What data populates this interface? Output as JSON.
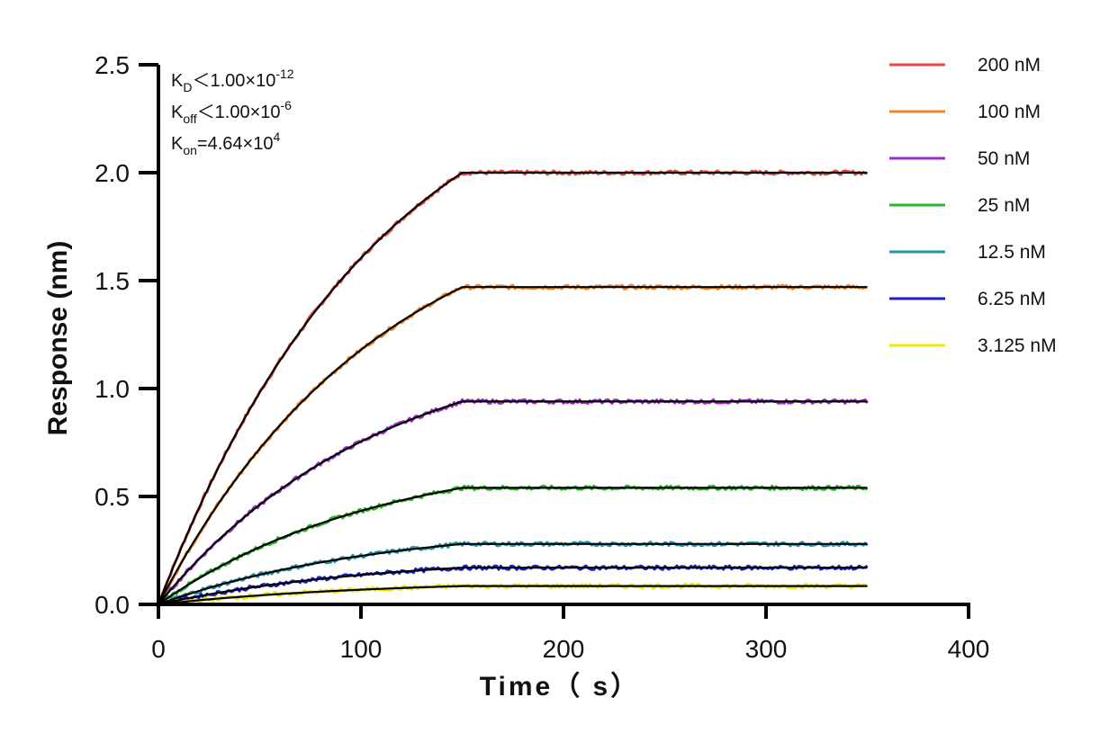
{
  "chart_data": {
    "type": "line",
    "xlabel": "Time（ s）",
    "ylabel": "Response (nm)",
    "xlim": [
      0,
      400
    ],
    "ylim": [
      0,
      2.5
    ],
    "xticks": [
      "0",
      "100",
      "200",
      "300",
      "400"
    ],
    "yticks": [
      "0.0",
      "0.5",
      "1.0",
      "1.5",
      "2.0",
      "2.5"
    ],
    "association_end": 150,
    "end_time": 350,
    "tau_s": 110,
    "legend_position": "right",
    "fit_color": "#000000",
    "series": [
      {
        "name": "200 nM",
        "color": "#e8483f",
        "plateau": 2.0
      },
      {
        "name": "100 nM",
        "color": "#f5831f",
        "plateau": 1.47
      },
      {
        "name": "50 nM",
        "color": "#9b2fc7",
        "plateau": 0.94
      },
      {
        "name": "25 nM",
        "color": "#2bb52b",
        "plateau": 0.54
      },
      {
        "name": "12.5 nM",
        "color": "#2196a8",
        "plateau": 0.28
      },
      {
        "name": "6.25 nM",
        "color": "#1c22c8",
        "plateau": 0.17
      },
      {
        "name": "3.125 nM",
        "color": "#f2e600",
        "plateau": 0.085
      }
    ],
    "annotations": {
      "kd": {
        "k": "K",
        "sub": "D",
        "rest": "＜1.00×10",
        "sup": "-12"
      },
      "koff": {
        "k": "K",
        "sub": "off",
        "rest": "＜1.00×10",
        "sup": "-6"
      },
      "kon": {
        "k": "K",
        "sub": "on",
        "rest": "=4.64×10",
        "sup": "4"
      }
    }
  }
}
